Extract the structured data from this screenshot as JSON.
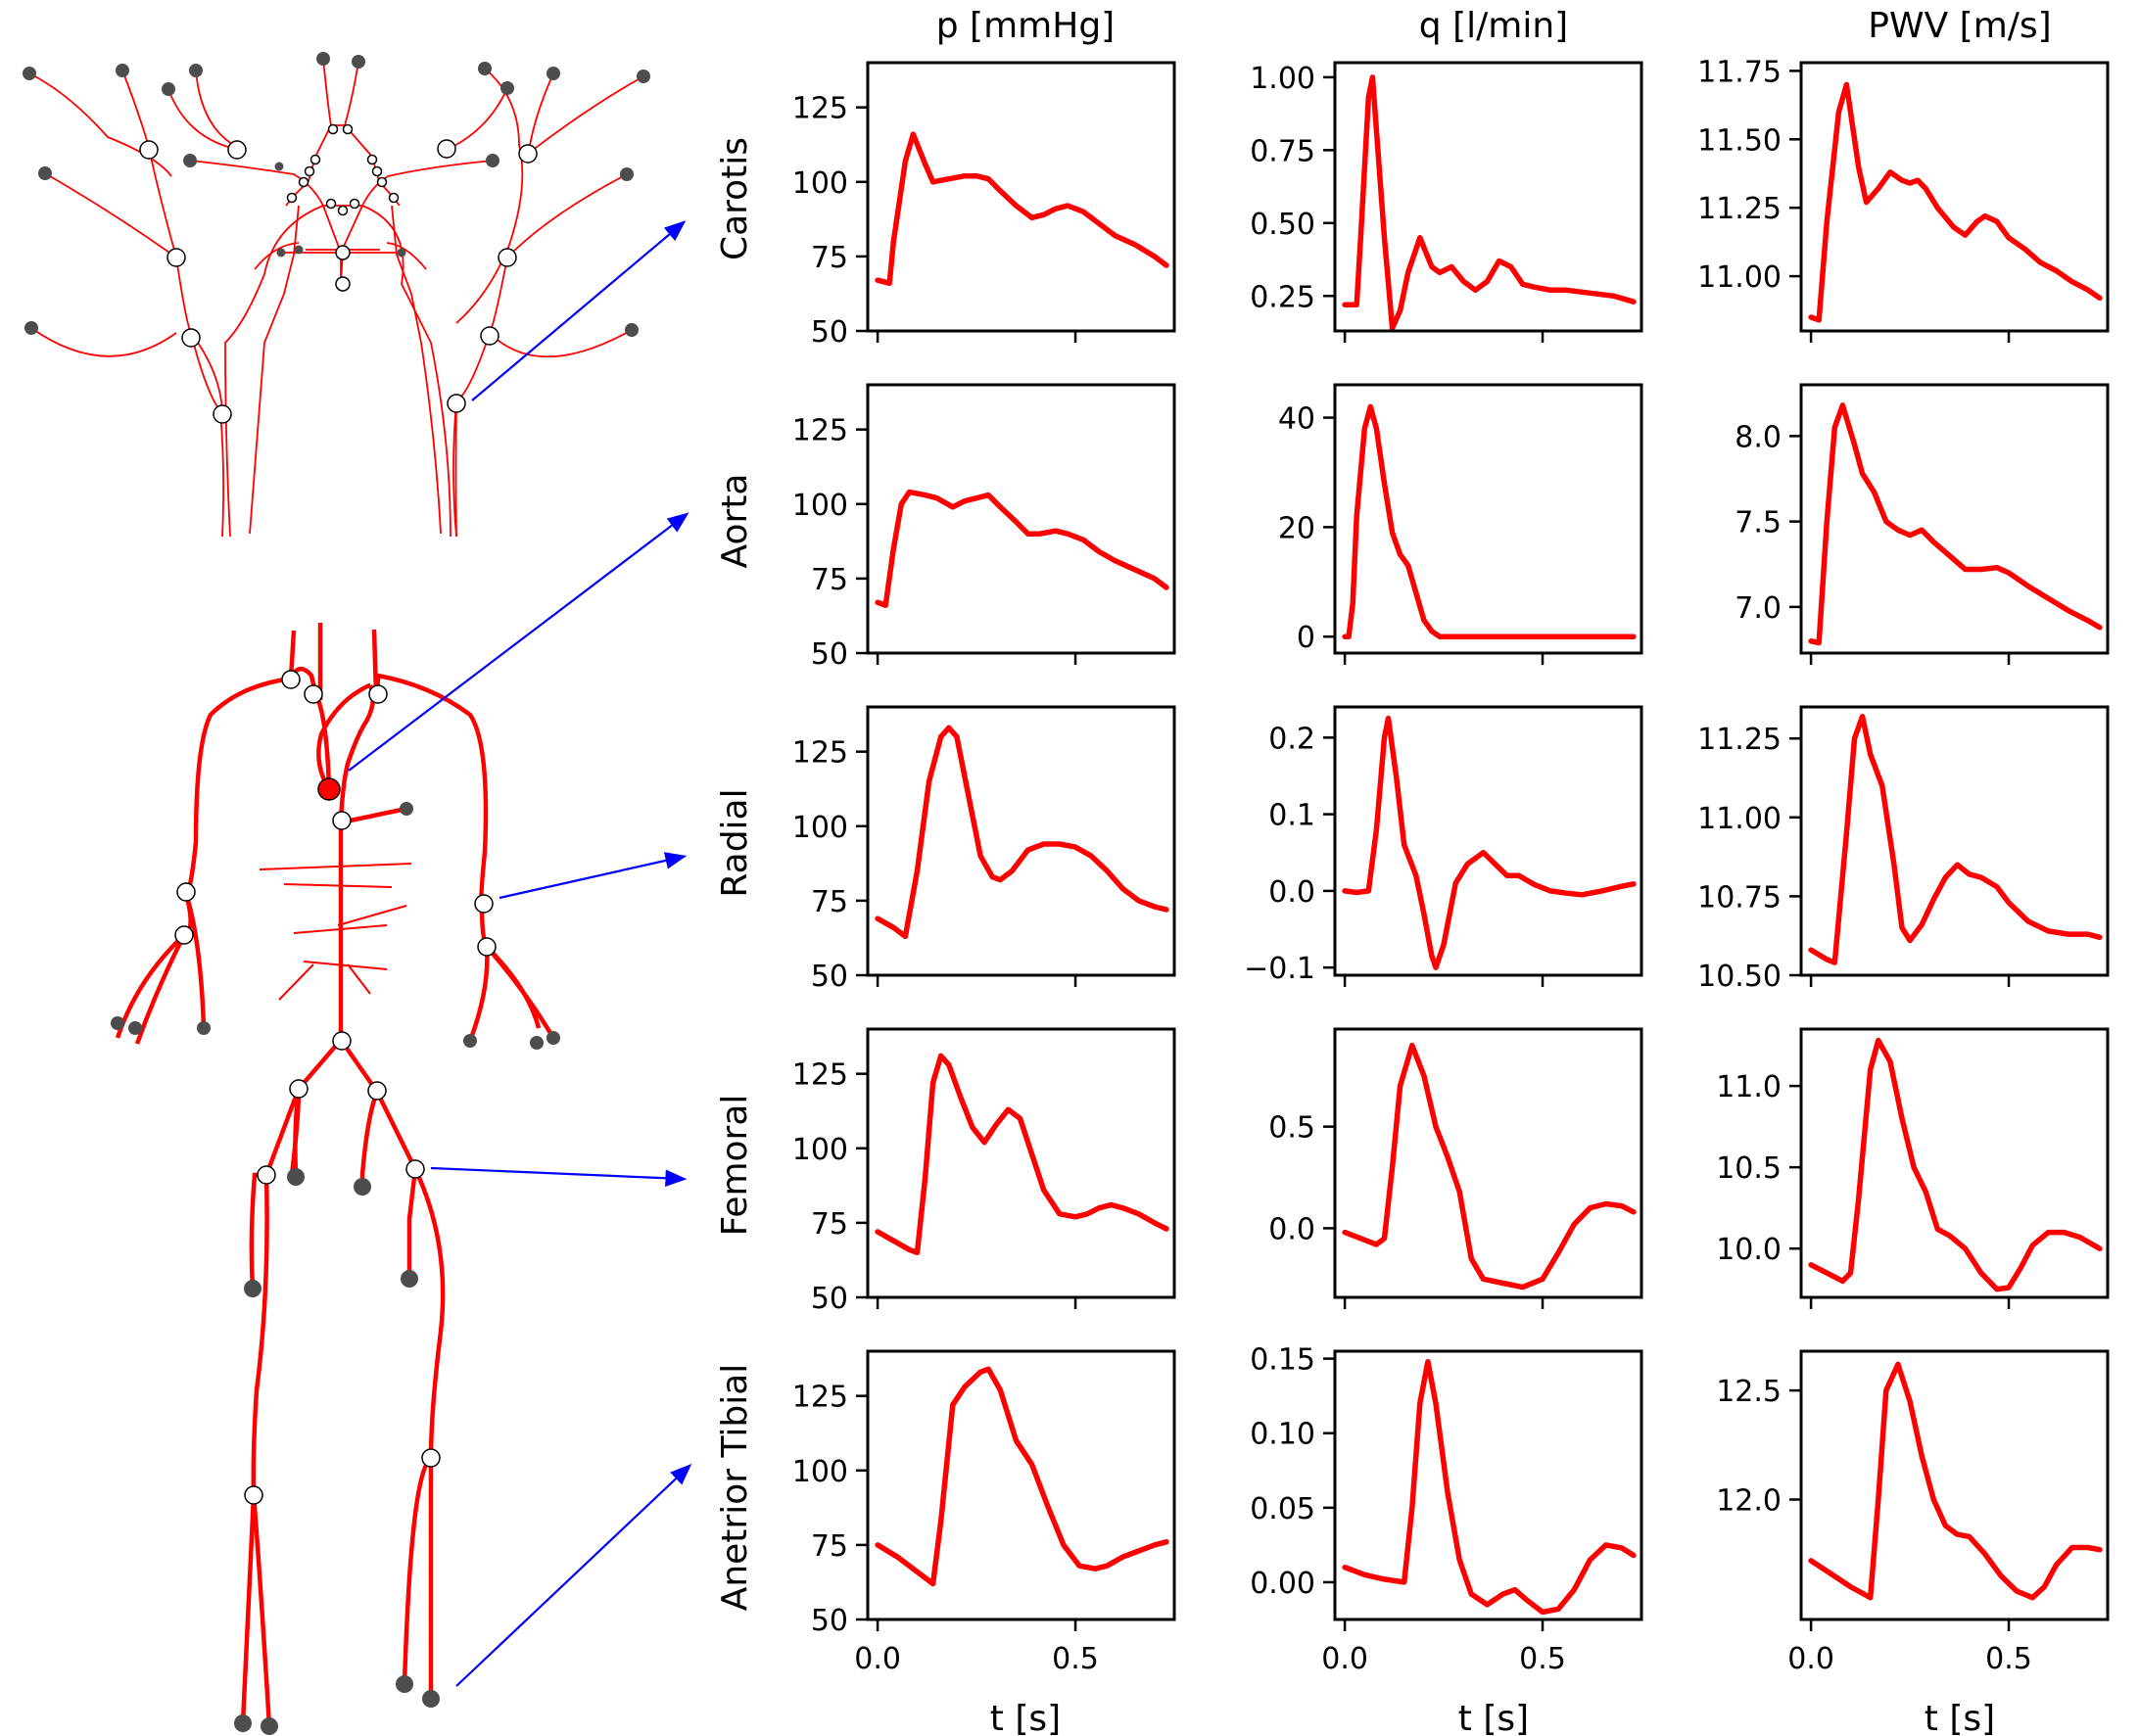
{
  "column_titles": [
    "p [mmHg]",
    "q [l/min]",
    "PWV [m/s]"
  ],
  "row_labels": [
    "Carotis",
    "Aorta",
    "Radial",
    "Femoral",
    "Anetrior Tibial"
  ],
  "xlabel": "t [s]",
  "colors": {
    "curve": "#ff0000",
    "vessel": "#ff0000",
    "arrow": "#0000ff",
    "outlet": "#4d4d4d",
    "highlight": "#ff0000"
  },
  "chart_data": [
    {
      "type": "line",
      "row": "Carotis",
      "col": "p [mmHg]",
      "xlim": [
        -0.025,
        0.75
      ],
      "ylim": [
        50,
        140
      ],
      "xticks": [
        0.0,
        0.5
      ],
      "xticklabels": [
        "0.0",
        "0.5"
      ],
      "yticks": [
        50,
        75,
        100,
        125
      ],
      "yticklabels": [
        "50",
        "75",
        "100",
        "125"
      ],
      "x": [
        0,
        0.03,
        0.04,
        0.07,
        0.09,
        0.12,
        0.14,
        0.18,
        0.22,
        0.25,
        0.28,
        0.31,
        0.35,
        0.39,
        0.42,
        0.45,
        0.48,
        0.52,
        0.56,
        0.6,
        0.65,
        0.7,
        0.73
      ],
      "y": [
        67,
        66,
        80,
        107,
        116,
        106,
        100,
        101,
        102,
        102,
        101,
        97,
        92,
        88,
        89,
        91,
        92,
        90,
        86,
        82,
        79,
        75,
        72
      ]
    },
    {
      "type": "line",
      "row": "Carotis",
      "col": "q [l/min]",
      "xlim": [
        -0.025,
        0.75
      ],
      "ylim": [
        0.13,
        1.05
      ],
      "xticks": [
        0.0,
        0.5
      ],
      "xticklabels": [
        "0.0",
        "0.5"
      ],
      "yticks": [
        0.25,
        0.5,
        0.75,
        1.0
      ],
      "yticklabels": [
        "0.25",
        "0.50",
        "0.75",
        "1.00"
      ],
      "x": [
        0,
        0.03,
        0.04,
        0.06,
        0.07,
        0.1,
        0.12,
        0.14,
        0.16,
        0.19,
        0.22,
        0.24,
        0.27,
        0.3,
        0.33,
        0.36,
        0.39,
        0.42,
        0.45,
        0.48,
        0.52,
        0.56,
        0.62,
        0.68,
        0.73
      ],
      "y": [
        0.22,
        0.22,
        0.45,
        0.93,
        1.0,
        0.45,
        0.14,
        0.2,
        0.33,
        0.45,
        0.35,
        0.33,
        0.35,
        0.3,
        0.27,
        0.3,
        0.37,
        0.35,
        0.29,
        0.28,
        0.27,
        0.27,
        0.26,
        0.25,
        0.23
      ]
    },
    {
      "type": "line",
      "row": "Carotis",
      "col": "PWV [m/s]",
      "xlim": [
        -0.025,
        0.75
      ],
      "ylim": [
        10.8,
        11.78
      ],
      "xticks": [
        0.0,
        0.5
      ],
      "xticklabels": [
        "0.0",
        "0.5"
      ],
      "yticks": [
        11.0,
        11.25,
        11.5,
        11.75
      ],
      "yticklabels": [
        "11.00",
        "11.25",
        "11.50",
        "11.75"
      ],
      "x": [
        0,
        0.02,
        0.04,
        0.07,
        0.09,
        0.12,
        0.14,
        0.17,
        0.2,
        0.23,
        0.25,
        0.27,
        0.29,
        0.32,
        0.36,
        0.39,
        0.42,
        0.44,
        0.47,
        0.5,
        0.54,
        0.58,
        0.62,
        0.66,
        0.7,
        0.73
      ],
      "y": [
        10.85,
        10.84,
        11.2,
        11.6,
        11.7,
        11.4,
        11.27,
        11.32,
        11.38,
        11.35,
        11.34,
        11.35,
        11.32,
        11.25,
        11.18,
        11.15,
        11.2,
        11.22,
        11.2,
        11.14,
        11.1,
        11.05,
        11.02,
        10.98,
        10.95,
        10.92
      ]
    },
    {
      "type": "line",
      "row": "Aorta",
      "col": "p [mmHg]",
      "xlim": [
        -0.025,
        0.75
      ],
      "ylim": [
        50,
        140
      ],
      "xticks": [
        0.0,
        0.5
      ],
      "xticklabels": [
        "0.0",
        "0.5"
      ],
      "yticks": [
        50,
        75,
        100,
        125
      ],
      "yticklabels": [
        "50",
        "75",
        "100",
        "125"
      ],
      "x": [
        0,
        0.02,
        0.04,
        0.06,
        0.08,
        0.12,
        0.15,
        0.19,
        0.22,
        0.25,
        0.28,
        0.31,
        0.35,
        0.38,
        0.41,
        0.45,
        0.48,
        0.52,
        0.56,
        0.6,
        0.65,
        0.7,
        0.73
      ],
      "y": [
        67,
        66,
        85,
        100,
        104,
        103,
        102,
        99,
        101,
        102,
        103,
        99,
        94,
        90,
        90,
        91,
        90,
        88,
        84,
        81,
        78,
        75,
        72
      ]
    },
    {
      "type": "line",
      "row": "Aorta",
      "col": "q [l/min]",
      "xlim": [
        -0.025,
        0.75
      ],
      "ylim": [
        -3,
        46
      ],
      "xticks": [
        0.0,
        0.5
      ],
      "xticklabels": [
        "0.0",
        "0.5"
      ],
      "yticks": [
        0,
        20,
        40
      ],
      "yticklabels": [
        "0",
        "20",
        "40"
      ],
      "x": [
        0,
        0.01,
        0.02,
        0.03,
        0.05,
        0.065,
        0.08,
        0.1,
        0.12,
        0.14,
        0.16,
        0.18,
        0.2,
        0.22,
        0.24,
        0.3,
        0.4,
        0.5,
        0.6,
        0.73
      ],
      "y": [
        0,
        0,
        6,
        22,
        38,
        42,
        38,
        28,
        19,
        15,
        13,
        8,
        3,
        1,
        0,
        0,
        0,
        0,
        0,
        0
      ]
    },
    {
      "type": "line",
      "row": "Aorta",
      "col": "PWV [m/s]",
      "xlim": [
        -0.025,
        0.75
      ],
      "ylim": [
        6.73,
        8.3
      ],
      "xticks": [
        0.0,
        0.5
      ],
      "xticklabels": [
        "0.0",
        "0.5"
      ],
      "yticks": [
        7.0,
        7.5,
        8.0
      ],
      "yticklabels": [
        "7.0",
        "7.5",
        "8.0"
      ],
      "x": [
        0,
        0.02,
        0.04,
        0.06,
        0.08,
        0.11,
        0.13,
        0.16,
        0.19,
        0.22,
        0.25,
        0.28,
        0.31,
        0.35,
        0.39,
        0.43,
        0.47,
        0.5,
        0.55,
        0.6,
        0.65,
        0.7,
        0.73
      ],
      "y": [
        6.8,
        6.79,
        7.5,
        8.05,
        8.18,
        7.95,
        7.78,
        7.67,
        7.5,
        7.45,
        7.42,
        7.45,
        7.38,
        7.3,
        7.22,
        7.22,
        7.23,
        7.2,
        7.12,
        7.05,
        6.98,
        6.92,
        6.88
      ]
    },
    {
      "type": "line",
      "row": "Radial",
      "col": "p [mmHg]",
      "xlim": [
        -0.025,
        0.75
      ],
      "ylim": [
        50,
        140
      ],
      "xticks": [
        0.0,
        0.5
      ],
      "xticklabels": [
        "0.0",
        "0.5"
      ],
      "yticks": [
        50,
        75,
        100,
        125
      ],
      "yticklabels": [
        "50",
        "75",
        "100",
        "125"
      ],
      "x": [
        0,
        0.04,
        0.07,
        0.1,
        0.13,
        0.16,
        0.18,
        0.2,
        0.23,
        0.26,
        0.29,
        0.31,
        0.34,
        0.38,
        0.42,
        0.46,
        0.5,
        0.54,
        0.58,
        0.62,
        0.66,
        0.7,
        0.73
      ],
      "y": [
        69,
        66,
        63,
        85,
        115,
        130,
        133,
        130,
        110,
        90,
        83,
        82,
        85,
        92,
        94,
        94,
        93,
        90,
        85,
        79,
        75,
        73,
        72
      ]
    },
    {
      "type": "line",
      "row": "Radial",
      "col": "q [l/min]",
      "xlim": [
        -0.025,
        0.75
      ],
      "ylim": [
        -0.11,
        0.24
      ],
      "xticks": [
        0.0,
        0.5
      ],
      "xticklabels": [
        "0.0",
        "0.5"
      ],
      "yticks": [
        -0.1,
        0.0,
        0.1,
        0.2
      ],
      "yticklabels": [
        "−0.1",
        "0.0",
        "0.1",
        "0.2"
      ],
      "x": [
        0,
        0.03,
        0.06,
        0.08,
        0.1,
        0.11,
        0.13,
        0.15,
        0.18,
        0.2,
        0.22,
        0.23,
        0.25,
        0.28,
        0.31,
        0.35,
        0.38,
        0.41,
        0.44,
        0.48,
        0.52,
        0.56,
        0.6,
        0.65,
        0.7,
        0.73
      ],
      "y": [
        0,
        -0.002,
        0,
        0.08,
        0.2,
        0.225,
        0.15,
        0.06,
        0.02,
        -0.03,
        -0.085,
        -0.1,
        -0.07,
        0.01,
        0.035,
        0.05,
        0.035,
        0.02,
        0.02,
        0.008,
        0.0,
        -0.003,
        -0.005,
        0.0,
        0.006,
        0.009
      ]
    },
    {
      "type": "line",
      "row": "Radial",
      "col": "PWV [m/s]",
      "xlim": [
        -0.025,
        0.75
      ],
      "ylim": [
        10.5,
        11.35
      ],
      "xticks": [
        0.0,
        0.5
      ],
      "xticklabels": [
        "0.0",
        "0.5"
      ],
      "yticks": [
        10.5,
        10.75,
        11.0,
        11.25
      ],
      "yticklabels": [
        "10.50",
        "10.75",
        "11.00",
        "11.25"
      ],
      "x": [
        0,
        0.04,
        0.06,
        0.09,
        0.11,
        0.13,
        0.15,
        0.18,
        0.21,
        0.23,
        0.25,
        0.28,
        0.31,
        0.34,
        0.37,
        0.4,
        0.43,
        0.47,
        0.5,
        0.55,
        0.6,
        0.65,
        0.7,
        0.73
      ],
      "y": [
        10.58,
        10.55,
        10.54,
        10.95,
        11.25,
        11.32,
        11.2,
        11.1,
        10.85,
        10.65,
        10.61,
        10.66,
        10.74,
        10.81,
        10.85,
        10.82,
        10.81,
        10.78,
        10.73,
        10.67,
        10.64,
        10.63,
        10.63,
        10.62
      ]
    },
    {
      "type": "line",
      "row": "Femoral",
      "col": "p [mmHg]",
      "xlim": [
        -0.025,
        0.75
      ],
      "ylim": [
        50,
        140
      ],
      "xticks": [
        0.0,
        0.5
      ],
      "xticklabels": [
        "0.0",
        "0.5"
      ],
      "yticks": [
        50,
        75,
        100,
        125
      ],
      "yticklabels": [
        "50",
        "75",
        "100",
        "125"
      ],
      "x": [
        0,
        0.04,
        0.08,
        0.1,
        0.12,
        0.14,
        0.16,
        0.18,
        0.21,
        0.24,
        0.27,
        0.3,
        0.33,
        0.36,
        0.39,
        0.42,
        0.46,
        0.5,
        0.53,
        0.56,
        0.59,
        0.62,
        0.66,
        0.7,
        0.73
      ],
      "y": [
        72,
        69,
        66,
        65,
        90,
        122,
        131,
        128,
        117,
        107,
        102,
        108,
        113,
        110,
        98,
        86,
        78,
        77,
        78,
        80,
        81,
        80,
        78,
        75,
        73
      ]
    },
    {
      "type": "line",
      "row": "Femoral",
      "col": "q [l/min]",
      "xlim": [
        -0.025,
        0.75
      ],
      "ylim": [
        -0.34,
        0.98
      ],
      "xticks": [
        0.0,
        0.5
      ],
      "xticklabels": [
        "0.0",
        "0.5"
      ],
      "yticks": [
        0.0,
        0.5
      ],
      "yticklabels": [
        "0.0",
        "0.5"
      ],
      "x": [
        0,
        0.04,
        0.08,
        0.1,
        0.12,
        0.14,
        0.17,
        0.2,
        0.23,
        0.26,
        0.29,
        0.32,
        0.35,
        0.4,
        0.45,
        0.5,
        0.54,
        0.58,
        0.62,
        0.66,
        0.7,
        0.73
      ],
      "y": [
        -0.02,
        -0.05,
        -0.08,
        -0.05,
        0.3,
        0.7,
        0.9,
        0.75,
        0.5,
        0.35,
        0.18,
        -0.15,
        -0.25,
        -0.27,
        -0.29,
        -0.25,
        -0.12,
        0.02,
        0.1,
        0.12,
        0.11,
        0.08
      ]
    },
    {
      "type": "line",
      "row": "Femoral",
      "col": "PWV [m/s]",
      "xlim": [
        -0.025,
        0.75
      ],
      "ylim": [
        9.7,
        11.35
      ],
      "xticks": [
        0.0,
        0.5
      ],
      "xticklabels": [
        "0.0",
        "0.5"
      ],
      "yticks": [
        10.0,
        10.5,
        11.0
      ],
      "yticklabels": [
        "10.0",
        "10.5",
        "11.0"
      ],
      "x": [
        0,
        0.04,
        0.08,
        0.1,
        0.12,
        0.15,
        0.17,
        0.2,
        0.23,
        0.26,
        0.29,
        0.32,
        0.35,
        0.39,
        0.43,
        0.47,
        0.5,
        0.53,
        0.56,
        0.6,
        0.64,
        0.68,
        0.73
      ],
      "y": [
        9.9,
        9.85,
        9.8,
        9.85,
        10.3,
        11.1,
        11.28,
        11.15,
        10.8,
        10.5,
        10.35,
        10.12,
        10.08,
        10.0,
        9.85,
        9.75,
        9.76,
        9.88,
        10.02,
        10.1,
        10.1,
        10.07,
        10.0
      ]
    },
    {
      "type": "line",
      "row": "Anetrior Tibial",
      "col": "p [mmHg]",
      "xlim": [
        -0.025,
        0.75
      ],
      "ylim": [
        50,
        140
      ],
      "xticks": [
        0.0,
        0.5
      ],
      "xticklabels": [
        "0.0",
        "0.5"
      ],
      "yticks": [
        50,
        75,
        100,
        125
      ],
      "yticklabels": [
        "50",
        "75",
        "100",
        "125"
      ],
      "x": [
        0,
        0.05,
        0.1,
        0.14,
        0.16,
        0.19,
        0.22,
        0.26,
        0.28,
        0.31,
        0.35,
        0.39,
        0.43,
        0.47,
        0.51,
        0.55,
        0.58,
        0.62,
        0.66,
        0.7,
        0.73
      ],
      "y": [
        75,
        71,
        66,
        62,
        83,
        122,
        128,
        133,
        134,
        127,
        110,
        102,
        88,
        75,
        68,
        67,
        68,
        71,
        73,
        75,
        76
      ]
    },
    {
      "type": "line",
      "row": "Anetrior Tibial",
      "col": "q [l/min]",
      "xlim": [
        -0.025,
        0.75
      ],
      "ylim": [
        -0.025,
        0.155
      ],
      "xticks": [
        0.0,
        0.5
      ],
      "xticklabels": [
        "0.0",
        "0.5"
      ],
      "yticks": [
        0.0,
        0.05,
        0.1,
        0.15
      ],
      "yticklabels": [
        "0.00",
        "0.05",
        "0.10",
        "0.15"
      ],
      "x": [
        0,
        0.05,
        0.1,
        0.15,
        0.17,
        0.19,
        0.21,
        0.23,
        0.26,
        0.29,
        0.32,
        0.36,
        0.4,
        0.43,
        0.46,
        0.5,
        0.54,
        0.58,
        0.62,
        0.66,
        0.7,
        0.73
      ],
      "y": [
        0.01,
        0.005,
        0.002,
        0.0,
        0.05,
        0.12,
        0.148,
        0.12,
        0.06,
        0.015,
        -0.008,
        -0.015,
        -0.008,
        -0.005,
        -0.012,
        -0.02,
        -0.018,
        -0.005,
        0.015,
        0.025,
        0.023,
        0.018
      ]
    },
    {
      "type": "line",
      "row": "Anetrior Tibial",
      "col": "PWV [m/s]",
      "xlim": [
        -0.025,
        0.75
      ],
      "ylim": [
        11.45,
        12.68
      ],
      "xticks": [
        0.0,
        0.5
      ],
      "xticklabels": [
        "0.0",
        "0.5"
      ],
      "yticks": [
        12.0,
        12.5
      ],
      "yticklabels": [
        "12.0",
        "12.5"
      ],
      "x": [
        0,
        0.05,
        0.1,
        0.15,
        0.17,
        0.19,
        0.22,
        0.25,
        0.28,
        0.31,
        0.34,
        0.37,
        0.4,
        0.44,
        0.48,
        0.52,
        0.56,
        0.59,
        0.62,
        0.66,
        0.7,
        0.73
      ],
      "y": [
        11.72,
        11.66,
        11.6,
        11.55,
        12.0,
        12.5,
        12.62,
        12.45,
        12.2,
        12.0,
        11.88,
        11.84,
        11.83,
        11.75,
        11.65,
        11.58,
        11.55,
        11.6,
        11.7,
        11.78,
        11.78,
        11.77
      ]
    }
  ]
}
